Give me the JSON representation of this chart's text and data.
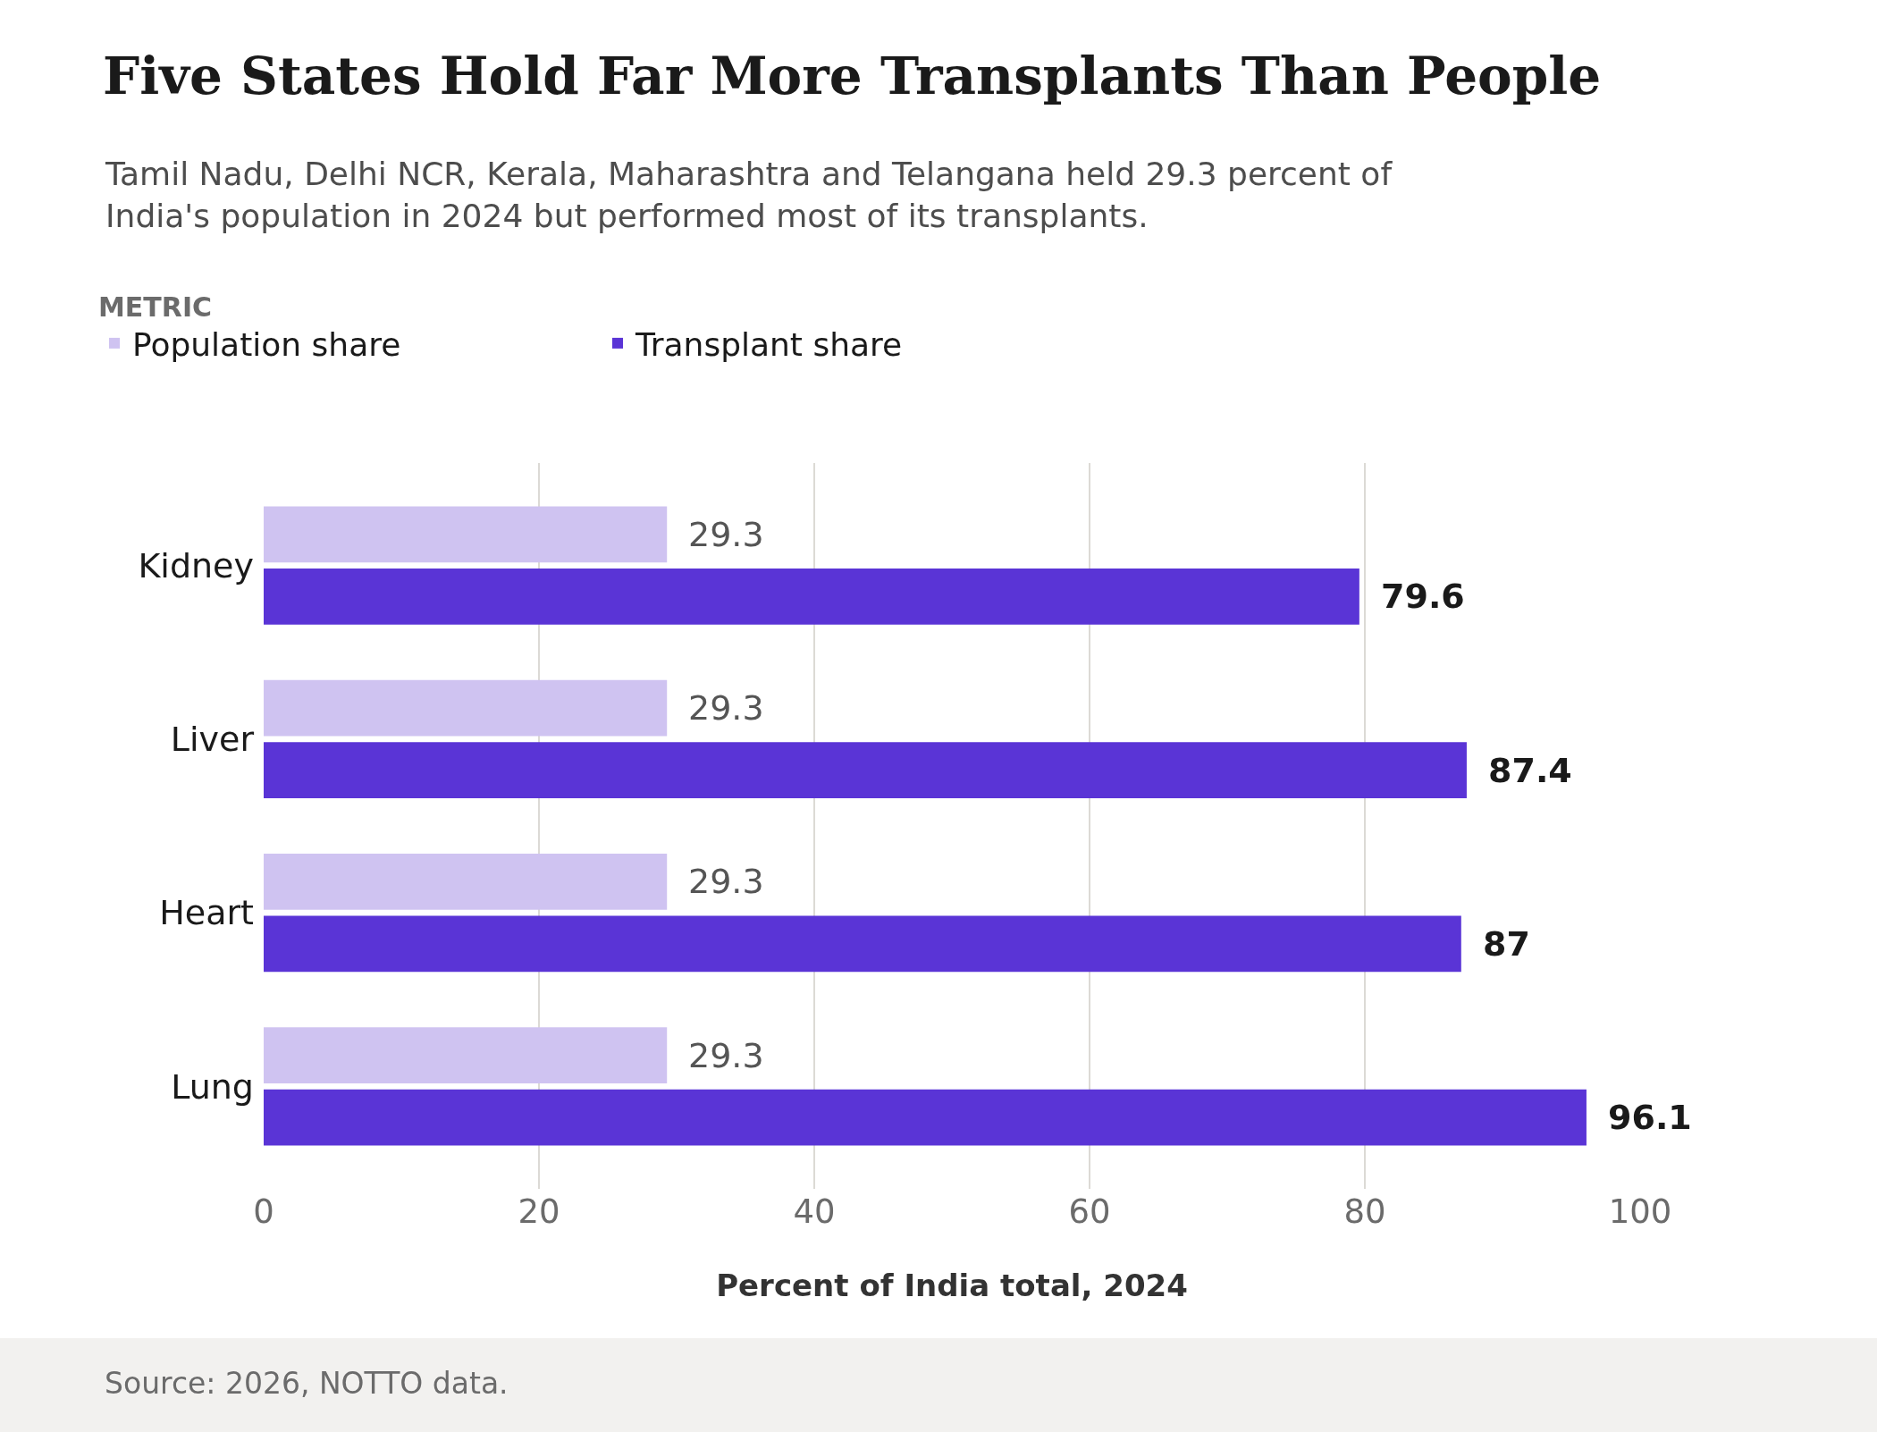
{
  "chart_data": {
    "type": "bar",
    "orientation": "horizontal",
    "title": "Five States Hold Far More Transplants Than People",
    "subtitle": "Tamil Nadu, Delhi NCR, Kerala, Maharashtra and Telangana held 29.3 percent of India's population in 2024 but performed most of its transplants.",
    "legend_title": "METRIC",
    "xlabel": "Percent of India total, 2024",
    "categories": [
      "Kidney",
      "Liver",
      "Heart",
      "Lung"
    ],
    "series": [
      {
        "name": "Population share",
        "color": "#cfc3f1",
        "values": [
          29.3,
          29.3,
          29.3,
          29.3
        ]
      },
      {
        "name": "Transplant share",
        "color": "#5a34d6",
        "values": [
          79.6,
          87.4,
          87,
          96.1
        ]
      }
    ],
    "xlim": [
      0,
      100
    ],
    "xticks": [
      0,
      20,
      40,
      60,
      80,
      100
    ],
    "grid": "x",
    "legend": "top left",
    "data_labels": true,
    "annotations": [
      "Source: 2026, NOTTO data."
    ]
  }
}
